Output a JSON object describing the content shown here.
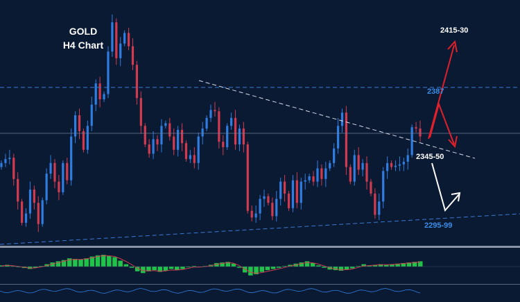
{
  "colors": {
    "background": "#0b1a33",
    "bull_candle": "#2f7de0",
    "bear_candle": "#d23b4f",
    "resistance_line": "#3a7bd5",
    "trendline": "#d8dce6",
    "arrow_up": "#e0202a",
    "arrow_down": "#ffffff",
    "macd_hist": "#21c24a",
    "signal_line": "#d23b4f",
    "level_text_blue": "#3b8de8",
    "level_text_white": "#ffffff"
  },
  "chart_data": {
    "type": "candlestick",
    "title": "GOLD",
    "subtitle": "H4 Chart",
    "ylim": [
      2275,
      2445
    ],
    "levels": {
      "target_up": {
        "label": "2415-30",
        "value": 2422
      },
      "resistance": {
        "label": "2387",
        "value": 2387
      },
      "pivot": {
        "label": "2345-50",
        "value": 2348
      },
      "support": {
        "label": "2295-99",
        "value": 2297
      }
    },
    "close_series": [
      2330,
      2333,
      2334,
      2318,
      2301,
      2285,
      2292,
      2310,
      2300,
      2284,
      2302,
      2322,
      2330,
      2316,
      2308,
      2330,
      2317,
      2350,
      2366,
      2354,
      2340,
      2358,
      2374,
      2390,
      2378,
      2382,
      2414,
      2436,
      2409,
      2420,
      2428,
      2418,
      2404,
      2379,
      2358,
      2344,
      2337,
      2348,
      2344,
      2358,
      2360,
      2350,
      2340,
      2355,
      2345,
      2333,
      2336,
      2330,
      2350,
      2356,
      2364,
      2370,
      2369,
      2346,
      2342,
      2358,
      2364,
      2344,
      2356,
      2344,
      2294,
      2289,
      2292,
      2303,
      2305,
      2300,
      2290,
      2303,
      2316,
      2307,
      2296,
      2317,
      2300,
      2316,
      2317,
      2320,
      2316,
      2326,
      2318,
      2326,
      2330,
      2341,
      2358,
      2368,
      2327,
      2316,
      2336,
      2325,
      2330,
      2316,
      2307,
      2291,
      2301,
      2324,
      2330,
      2327,
      2328,
      2329,
      2331,
      2336,
      2357,
      2356,
      2350
    ]
  },
  "indicator": {
    "name": "MACD",
    "histogram": [
      0.1,
      0.15,
      0.05,
      -0.05,
      -0.12,
      -0.2,
      -0.1,
      0.05,
      0.2,
      0.35,
      0.45,
      0.55,
      0.7,
      0.65,
      0.6,
      0.7,
      0.85,
      0.95,
      1.0,
      0.9,
      0.8,
      0.5,
      0.2,
      -0.1,
      -0.4,
      -0.55,
      -0.4,
      -0.3,
      -0.45,
      -0.35,
      -0.2,
      -0.3,
      -0.2,
      -0.05,
      0.05,
      -0.05,
      0.05,
      0.15,
      0.3,
      0.35,
      0.4,
      0.25,
      -0.1,
      -0.5,
      -0.75,
      -0.65,
      -0.45,
      -0.3,
      -0.2,
      -0.1,
      0.05,
      0.15,
      0.25,
      0.35,
      0.45,
      0.3,
      0.1,
      -0.1,
      -0.25,
      -0.3,
      -0.35,
      -0.25,
      -0.15,
      0.05,
      0.2,
      0.1,
      0.15,
      0.2,
      0.15,
      0.2,
      0.25,
      0.3,
      0.35,
      0.4,
      0.45
    ]
  }
}
